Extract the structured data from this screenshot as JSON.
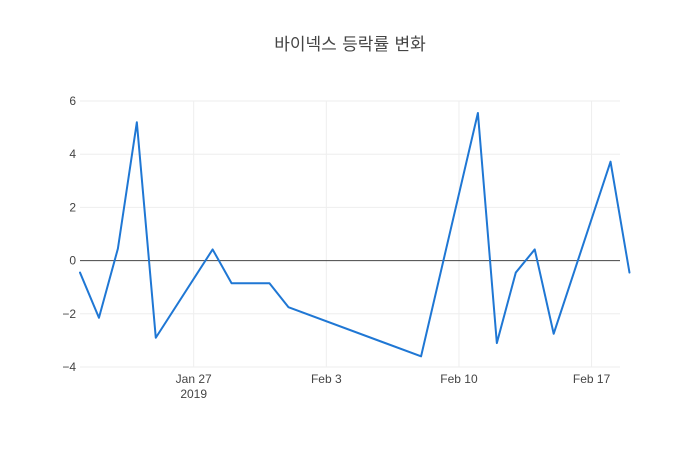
{
  "chart_data": {
    "type": "line",
    "title": "바이넥스 등락률 변화",
    "xlabel": "",
    "ylabel": "",
    "ylim": [
      -4,
      6
    ],
    "yticks": [
      "−4",
      "−2",
      "0",
      "2",
      "4",
      "6"
    ],
    "xticks": [
      {
        "date": "2019-01-27",
        "label": "Jan 27",
        "sublabel": "2019"
      },
      {
        "date": "2019-02-03",
        "label": "Feb 3",
        "sublabel": ""
      },
      {
        "date": "2019-02-10",
        "label": "Feb 10",
        "sublabel": ""
      },
      {
        "date": "2019-02-17",
        "label": "Feb 17",
        "sublabel": ""
      }
    ],
    "xrange": [
      "2019-01-21",
      "2019-02-18"
    ],
    "grid": true,
    "zeroline": true,
    "series": [
      {
        "color": "#1f77d4",
        "x": [
          "2019-01-21",
          "2019-01-22",
          "2019-01-23",
          "2019-01-24",
          "2019-01-25",
          "2019-01-28",
          "2019-01-29",
          "2019-01-30",
          "2019-01-31",
          "2019-02-01",
          "2019-02-08",
          "2019-02-11",
          "2019-02-12",
          "2019-02-13",
          "2019-02-14",
          "2019-02-15",
          "2019-02-18",
          "2019-02-19"
        ],
        "y": [
          -0.45,
          -2.15,
          0.45,
          5.2,
          -2.9,
          0.42,
          -0.85,
          -0.85,
          -0.85,
          -1.75,
          -3.6,
          5.55,
          -3.1,
          -0.45,
          0.42,
          -2.75,
          3.72,
          -0.45
        ]
      }
    ]
  }
}
